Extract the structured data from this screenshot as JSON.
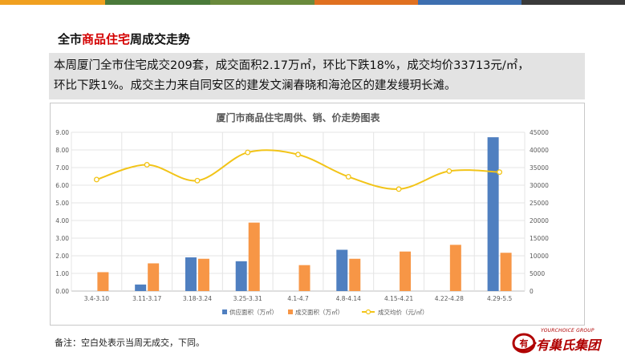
{
  "top_bar_colors": [
    "#f0a020",
    "#4a7a3a",
    "#6a8a3c",
    "#e07020",
    "#3e6fb0",
    "#3a3a3a"
  ],
  "heading": {
    "prefix": "全市",
    "highlight": "商品住宅",
    "suffix": "周成交走势"
  },
  "summary": {
    "line1": "本周厦门全市住宅成交209套，成交面积2.17万㎡，环比下跌18%，成交均价33713元/㎡，",
    "line2": "环比下跌1%。成交主力来自同安区的建发文澜春晓和海沧区的建发缦玥长滩。"
  },
  "note": "备注：空白处表示当周无成交，下同。",
  "logo": {
    "en": "YOURCHOICE GROUP",
    "cn": "有巢氏集团",
    "mark": "有",
    "icon": "nest-logo-icon",
    "color": "#b00000"
  },
  "chart_data": {
    "type": "bar+line",
    "title": "厦门市商品住宅周供、销、价走势图表",
    "categories": [
      "3.4-3.10",
      "3.11-3.17",
      "3.18-3.24",
      "3.25-3.31",
      "4.1-4.7",
      "4.8-4.14",
      "4.15-4.21",
      "4.22-4.28",
      "4.29-5.5"
    ],
    "y_left": {
      "min": 0,
      "max": 9,
      "step": 1,
      "ticks": [
        "0.00",
        "1.00",
        "2.00",
        "3.00",
        "4.00",
        "5.00",
        "6.00",
        "7.00",
        "8.00",
        "9.00"
      ]
    },
    "y_right": {
      "min": 0,
      "max": 45000,
      "step": 5000,
      "ticks": [
        "0",
        "5000",
        "10000",
        "15000",
        "20000",
        "25000",
        "30000",
        "35000",
        "40000",
        "45000"
      ]
    },
    "series": [
      {
        "name": "供应面积（万㎡）",
        "type": "bar",
        "axis": "left",
        "color": "#4f7fc0",
        "values": [
          null,
          0.37,
          1.91,
          1.69,
          null,
          2.34,
          null,
          null,
          8.72
        ]
      },
      {
        "name": "成交面积（万㎡）",
        "type": "bar",
        "axis": "left",
        "color": "#f79646",
        "values": [
          1.07,
          1.57,
          1.83,
          3.88,
          1.47,
          1.83,
          2.24,
          2.62,
          2.17
        ]
      },
      {
        "name": "成交均价（元/㎡）",
        "type": "line",
        "axis": "right",
        "color": "#f2c418",
        "values": [
          31600,
          35800,
          31300,
          39300,
          38700,
          32400,
          28900,
          34000,
          33713
        ]
      }
    ],
    "grid": true,
    "legend_position": "bottom"
  }
}
